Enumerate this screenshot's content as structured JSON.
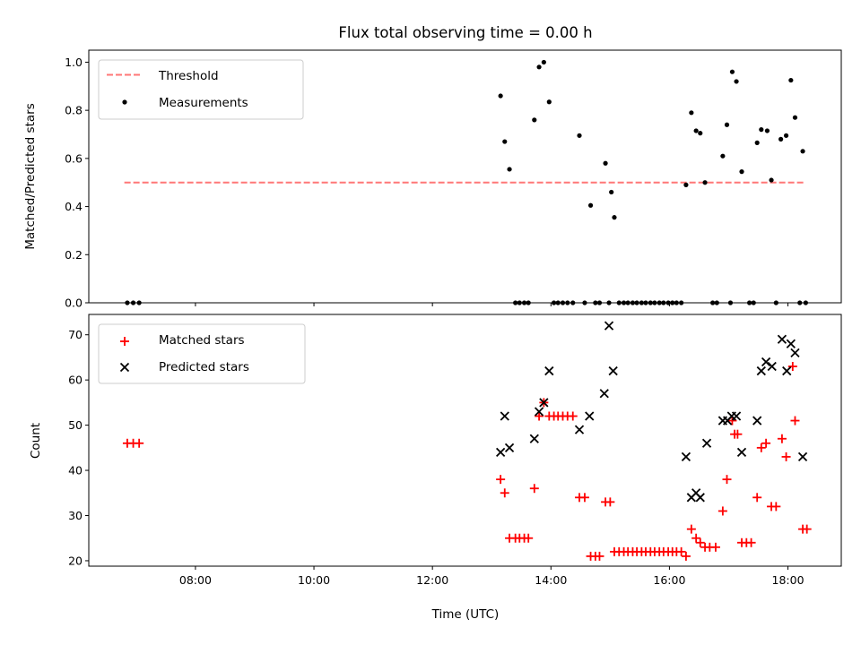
{
  "chart_data": {
    "type": "scatter",
    "title": "Flux total observing time = 0.00 h",
    "xlabel": "Time (UTC)",
    "x_unit": "hour of day (UTC)",
    "xlim": [
      6.2,
      18.9
    ],
    "xticks": [
      8,
      10,
      12,
      14,
      16,
      18
    ],
    "xtick_labels": [
      "08:00",
      "10:00",
      "12:00",
      "14:00",
      "16:00",
      "18:00"
    ],
    "panels": [
      {
        "id": "ratio",
        "ylabel": "Matched/Predicted stars",
        "ylim": [
          0.0,
          1.05
        ],
        "yticks": [
          0.0,
          0.2,
          0.4,
          0.6,
          0.8,
          1.0
        ],
        "ytick_labels": [
          "0.0",
          "0.2",
          "0.4",
          "0.6",
          "0.8",
          "1.0"
        ],
        "legend_position": "top-left",
        "threshold": {
          "name": "Threshold",
          "y": 0.5,
          "x_range": [
            6.8,
            18.3
          ],
          "color": "#ff7777",
          "style": "dashed"
        },
        "series": [
          {
            "name": "Measurements",
            "marker": "dot",
            "color": "#000000",
            "points": [
              [
                6.85,
                0.0
              ],
              [
                6.95,
                0.0
              ],
              [
                7.05,
                0.0
              ],
              [
                13.15,
                0.86
              ],
              [
                13.22,
                0.67
              ],
              [
                13.3,
                0.555
              ],
              [
                13.4,
                0.0
              ],
              [
                13.47,
                0.0
              ],
              [
                13.55,
                0.0
              ],
              [
                13.62,
                0.0
              ],
              [
                13.72,
                0.76
              ],
              [
                13.8,
                0.98
              ],
              [
                13.88,
                1.0
              ],
              [
                13.97,
                0.835
              ],
              [
                14.05,
                0.0
              ],
              [
                14.12,
                0.0
              ],
              [
                14.2,
                0.0
              ],
              [
                14.28,
                0.0
              ],
              [
                14.37,
                0.0
              ],
              [
                14.48,
                0.695
              ],
              [
                14.57,
                0.0
              ],
              [
                14.67,
                0.405
              ],
              [
                14.75,
                0.0
              ],
              [
                14.82,
                0.0
              ],
              [
                14.92,
                0.58
              ],
              [
                14.98,
                0.0
              ],
              [
                15.02,
                0.46
              ],
              [
                15.07,
                0.355
              ],
              [
                15.15,
                0.0
              ],
              [
                15.23,
                0.0
              ],
              [
                15.3,
                0.0
              ],
              [
                15.38,
                0.0
              ],
              [
                15.45,
                0.0
              ],
              [
                15.53,
                0.0
              ],
              [
                15.6,
                0.0
              ],
              [
                15.68,
                0.0
              ],
              [
                15.75,
                0.0
              ],
              [
                15.83,
                0.0
              ],
              [
                15.9,
                0.0
              ],
              [
                15.98,
                0.0
              ],
              [
                16.05,
                0.0
              ],
              [
                16.12,
                0.0
              ],
              [
                16.2,
                0.0
              ],
              [
                16.28,
                0.49
              ],
              [
                16.37,
                0.79
              ],
              [
                16.45,
                0.715
              ],
              [
                16.52,
                0.705
              ],
              [
                16.6,
                0.5
              ],
              [
                16.73,
                0.0
              ],
              [
                16.8,
                0.0
              ],
              [
                16.9,
                0.61
              ],
              [
                16.97,
                0.74
              ],
              [
                17.03,
                0.0
              ],
              [
                17.06,
                0.96
              ],
              [
                17.13,
                0.92
              ],
              [
                17.22,
                0.545
              ],
              [
                17.35,
                0.0
              ],
              [
                17.42,
                0.0
              ],
              [
                17.48,
                0.665
              ],
              [
                17.55,
                0.72
              ],
              [
                17.65,
                0.715
              ],
              [
                17.72,
                0.51
              ],
              [
                17.8,
                0.0
              ],
              [
                17.88,
                0.68
              ],
              [
                17.97,
                0.695
              ],
              [
                18.05,
                0.925
              ],
              [
                18.12,
                0.77
              ],
              [
                18.2,
                0.0
              ],
              [
                18.25,
                0.63
              ],
              [
                18.3,
                0.0
              ]
            ]
          }
        ]
      },
      {
        "id": "count",
        "ylabel": "Count",
        "ylim": [
          18.8,
          74.5
        ],
        "yticks": [
          20,
          30,
          40,
          50,
          60,
          70
        ],
        "ytick_labels": [
          "20",
          "30",
          "40",
          "50",
          "60",
          "70"
        ],
        "legend_position": "top-left",
        "series": [
          {
            "name": "Matched stars",
            "marker": "plus",
            "color": "#ff0000",
            "points": [
              [
                6.85,
                46
              ],
              [
                6.95,
                46
              ],
              [
                7.05,
                46
              ],
              [
                13.15,
                38
              ],
              [
                13.22,
                35
              ],
              [
                13.3,
                25
              ],
              [
                13.4,
                25
              ],
              [
                13.47,
                25
              ],
              [
                13.55,
                25
              ],
              [
                13.62,
                25
              ],
              [
                13.72,
                36
              ],
              [
                13.8,
                52
              ],
              [
                13.88,
                55
              ],
              [
                13.97,
                52
              ],
              [
                14.05,
                52
              ],
              [
                14.12,
                52
              ],
              [
                14.2,
                52
              ],
              [
                14.28,
                52
              ],
              [
                14.37,
                52
              ],
              [
                14.48,
                34
              ],
              [
                14.57,
                34
              ],
              [
                14.67,
                21
              ],
              [
                14.75,
                21
              ],
              [
                14.82,
                21
              ],
              [
                14.92,
                33
              ],
              [
                15.0,
                33
              ],
              [
                15.07,
                22
              ],
              [
                15.15,
                22
              ],
              [
                15.23,
                22
              ],
              [
                15.3,
                22
              ],
              [
                15.38,
                22
              ],
              [
                15.45,
                22
              ],
              [
                15.53,
                22
              ],
              [
                15.6,
                22
              ],
              [
                15.68,
                22
              ],
              [
                15.75,
                22
              ],
              [
                15.83,
                22
              ],
              [
                15.9,
                22
              ],
              [
                15.98,
                22
              ],
              [
                16.05,
                22
              ],
              [
                16.12,
                22
              ],
              [
                16.2,
                22
              ],
              [
                16.28,
                21
              ],
              [
                16.37,
                27
              ],
              [
                16.45,
                25
              ],
              [
                16.52,
                24
              ],
              [
                16.6,
                23
              ],
              [
                16.68,
                23
              ],
              [
                16.78,
                23
              ],
              [
                16.9,
                31
              ],
              [
                16.97,
                38
              ],
              [
                17.06,
                51
              ],
              [
                17.1,
                48
              ],
              [
                17.15,
                48
              ],
              [
                17.22,
                24
              ],
              [
                17.3,
                24
              ],
              [
                17.38,
                24
              ],
              [
                17.48,
                34
              ],
              [
                17.55,
                45
              ],
              [
                17.63,
                46
              ],
              [
                17.72,
                32
              ],
              [
                17.8,
                32
              ],
              [
                17.9,
                47
              ],
              [
                17.97,
                43
              ],
              [
                18.08,
                63
              ],
              [
                18.12,
                51
              ],
              [
                18.25,
                27
              ],
              [
                18.32,
                27
              ]
            ]
          },
          {
            "name": "Predicted stars",
            "marker": "x",
            "color": "#000000",
            "points": [
              [
                13.15,
                44
              ],
              [
                13.22,
                52
              ],
              [
                13.3,
                45
              ],
              [
                13.72,
                47
              ],
              [
                13.8,
                53
              ],
              [
                13.88,
                55
              ],
              [
                13.97,
                62
              ],
              [
                14.48,
                49
              ],
              [
                14.65,
                52
              ],
              [
                14.9,
                57
              ],
              [
                14.98,
                72
              ],
              [
                15.05,
                62
              ],
              [
                16.28,
                43
              ],
              [
                16.37,
                34
              ],
              [
                16.45,
                35
              ],
              [
                16.52,
                34
              ],
              [
                16.63,
                46
              ],
              [
                16.9,
                51
              ],
              [
                16.98,
                51
              ],
              [
                17.05,
                52
              ],
              [
                17.13,
                52
              ],
              [
                17.22,
                44
              ],
              [
                17.48,
                51
              ],
              [
                17.55,
                62
              ],
              [
                17.63,
                64
              ],
              [
                17.73,
                63
              ],
              [
                17.9,
                69
              ],
              [
                17.98,
                62
              ],
              [
                18.05,
                68
              ],
              [
                18.12,
                66
              ],
              [
                18.25,
                43
              ]
            ]
          }
        ]
      }
    ]
  }
}
